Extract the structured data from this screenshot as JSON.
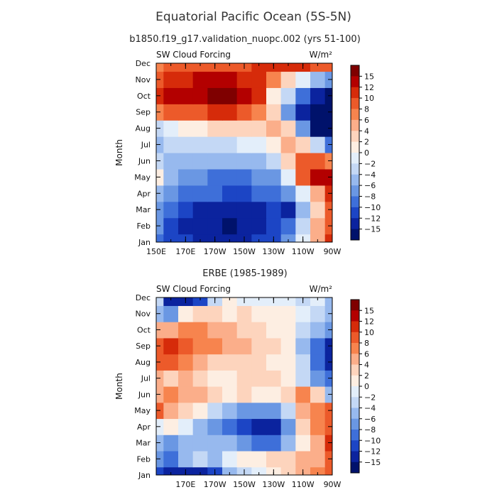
{
  "figure": {
    "title": "Equatorial Pacific Ocean (5S-5N)",
    "subtitle": "b1850.f19_g17.validation_nuopc.002 (yrs 51-100)"
  },
  "colorbar": {
    "labels": [
      "15",
      "12",
      "10",
      "8",
      "6",
      "4",
      "2",
      "0",
      "-2",
      "-4",
      "-6",
      "-8",
      "-10",
      "-12",
      "-15"
    ],
    "colors": [
      "#7f0000",
      "#b30000",
      "#d62b0a",
      "#ec5a2a",
      "#f7844e",
      "#fbae8a",
      "#fdd4bd",
      "#fdeee2",
      "#e3eefa",
      "#c4d8f5",
      "#97b9ee",
      "#6a97e3",
      "#3e6fd9",
      "#1c45c5",
      "#0b239e",
      "#00126b"
    ]
  },
  "chart_data": [
    {
      "type": "heatmap",
      "title": "",
      "left_label": "SW Cloud Forcing",
      "units": "W/m²",
      "ylabel": "Month",
      "x_ticks": [
        "150E",
        "170E",
        "170W",
        "150W",
        "130W",
        "110W",
        "90W"
      ],
      "x_range": [
        150,
        270
      ],
      "y_ticks": [
        "Jan",
        "Feb",
        "Mar",
        "Apr",
        "May",
        "Jun",
        "Jul",
        "Aug",
        "Sep",
        "Oct",
        "Nov",
        "Dec"
      ],
      "x": [
        150,
        160,
        170,
        180,
        190,
        200,
        210,
        220,
        230,
        240,
        250,
        260,
        270
      ],
      "months": [
        "Jan",
        "Feb",
        "Mar",
        "Apr",
        "May",
        "Jun",
        "Jul",
        "Aug",
        "Sep",
        "Oct",
        "Nov",
        "Dec"
      ],
      "values": [
        [
          -8,
          -10,
          -11,
          -12,
          -12,
          -12,
          -12,
          -11,
          -10,
          -7,
          -1,
          6,
          12
        ],
        [
          -7,
          -10,
          -12,
          -13,
          -14,
          -15,
          -14,
          -13,
          -11,
          -8,
          -2,
          5,
          10
        ],
        [
          -6,
          -9,
          -11,
          -12,
          -13,
          -13,
          -13,
          -12,
          -11,
          -12,
          -4,
          4,
          9
        ],
        [
          -4,
          -7,
          -9,
          -9,
          -9,
          -10,
          -10,
          -9,
          -8,
          -6,
          0,
          6,
          12
        ],
        [
          2,
          -5,
          -7,
          -7,
          -8,
          -8,
          -8,
          -7,
          -6,
          -1,
          10,
          13,
          15
        ],
        [
          -2,
          -4,
          -5,
          -5,
          -5,
          -5,
          -5,
          -5,
          -3,
          4,
          10,
          9,
          7
        ],
        [
          -4,
          -3,
          -3,
          -3,
          -2,
          -2,
          -1,
          0,
          2,
          5,
          4,
          -2,
          -8
        ],
        [
          -2,
          0,
          1,
          2,
          3,
          3,
          4,
          4,
          5,
          3,
          -6,
          -15,
          -16
        ],
        [
          8,
          9,
          10,
          10,
          11,
          12,
          10,
          8,
          4,
          -6,
          -13,
          -15,
          -16
        ],
        [
          12,
          14,
          13,
          15,
          16,
          16,
          15,
          11,
          2,
          -3,
          -8,
          -12,
          -15
        ],
        [
          10,
          12,
          12,
          13,
          13,
          13,
          12,
          11,
          8,
          3,
          0,
          -4,
          -6
        ],
        [
          8,
          9,
          9,
          9,
          10,
          10,
          10,
          11,
          12,
          11,
          11,
          10,
          9
        ]
      ]
    },
    {
      "type": "heatmap",
      "title": "ERBE (1985-1989)",
      "left_label": "SW Cloud Forcing",
      "units": "W/m²",
      "ylabel": "Month",
      "x_ticks": [
        "170E",
        "170W",
        "150W",
        "130W",
        "110W",
        "90W"
      ],
      "x_range": [
        150,
        270
      ],
      "y_ticks": [
        "Jan",
        "Feb",
        "Mar",
        "Apr",
        "May",
        "Jun",
        "Jul",
        "Aug",
        "Sep",
        "Oct",
        "Nov",
        "Dec"
      ],
      "x": [
        150,
        160,
        170,
        180,
        190,
        200,
        210,
        220,
        230,
        240,
        250,
        260,
        270
      ],
      "months": [
        "Jan",
        "Feb",
        "Mar",
        "Apr",
        "May",
        "Jun",
        "Jul",
        "Aug",
        "Sep",
        "Oct",
        "Nov",
        "Dec"
      ],
      "values": [
        [
          -10,
          -14,
          -13,
          -12,
          -10,
          -4,
          -2,
          0,
          1,
          3,
          6,
          8,
          10
        ],
        [
          -6,
          -8,
          -5,
          -3,
          -4,
          -1,
          1,
          2,
          3,
          4,
          5,
          6,
          9
        ],
        [
          -4,
          -6,
          -4,
          -4,
          -5,
          -5,
          -6,
          -8,
          -9,
          -4,
          2,
          6,
          12
        ],
        [
          0,
          2,
          -1,
          -4,
          -7,
          -8,
          -10,
          -12,
          -12,
          -6,
          3,
          7,
          10
        ],
        [
          9,
          6,
          4,
          2,
          -2,
          -5,
          -6,
          -7,
          -6,
          -2,
          6,
          8,
          9
        ],
        [
          6,
          7,
          6,
          5,
          3,
          2,
          3,
          2,
          2,
          4,
          7,
          3,
          -4
        ],
        [
          5,
          4,
          5,
          3,
          2,
          2,
          3,
          3,
          3,
          2,
          -2,
          -6,
          -9
        ],
        [
          9,
          10,
          8,
          6,
          4,
          3,
          3,
          3,
          2,
          1,
          -3,
          -8,
          -12
        ],
        [
          10,
          11,
          9,
          8,
          7,
          6,
          5,
          4,
          3,
          2,
          -4,
          -8,
          -12
        ],
        [
          5,
          6,
          7,
          8,
          6,
          5,
          4,
          3,
          2,
          2,
          -2,
          -5,
          -6
        ],
        [
          -4,
          -6,
          2,
          4,
          3,
          2,
          3,
          2,
          1,
          2,
          0,
          -2,
          -4
        ],
        [
          -2,
          -12,
          -13,
          -10,
          -2,
          1,
          -1,
          0,
          -1,
          0,
          -3,
          -1,
          -5
        ]
      ]
    }
  ]
}
